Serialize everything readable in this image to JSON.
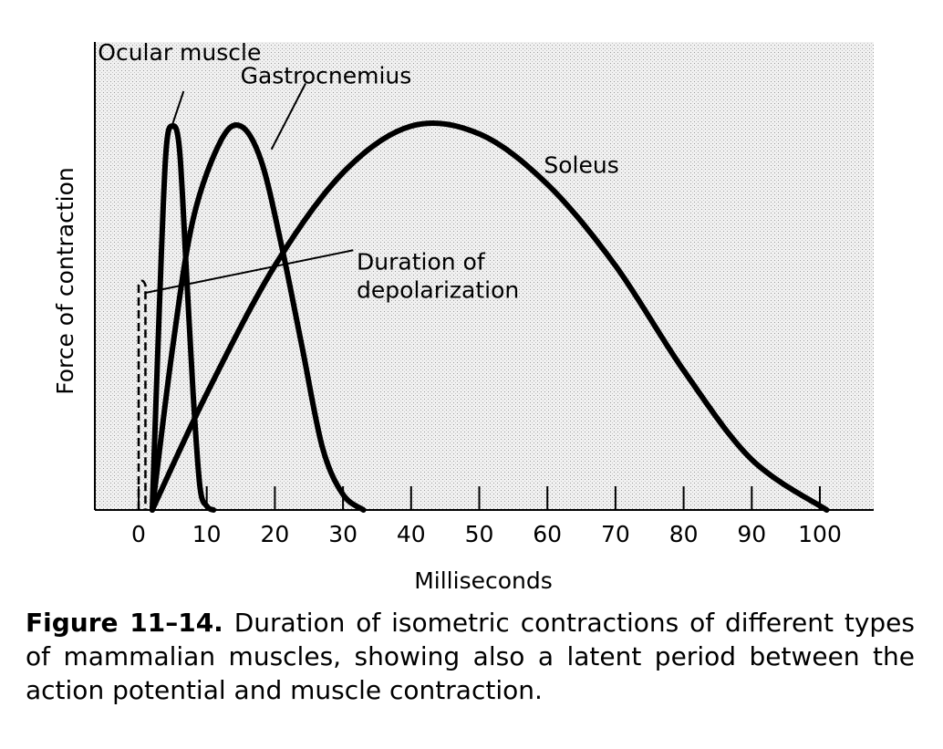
{
  "chart_data": {
    "type": "line",
    "title": "",
    "xlabel": "Milliseconds",
    "ylabel": "Force of contraction",
    "xlim": [
      0,
      110
    ],
    "ylim": [
      0,
      1
    ],
    "xticks": [
      0,
      10,
      20,
      30,
      40,
      50,
      60,
      70,
      80,
      90,
      100
    ],
    "grid": false,
    "legend": "none (curves labeled directly)",
    "series": [
      {
        "name": "Ocular muscle",
        "x": [
          2,
          3,
          4,
          5,
          6,
          7,
          8,
          9,
          10,
          11
        ],
        "y": [
          0,
          0.5,
          0.92,
          0.99,
          0.93,
          0.62,
          0.3,
          0.06,
          0.01,
          0
        ]
      },
      {
        "name": "Gastrocnemius",
        "x": [
          2,
          5,
          8,
          12,
          15,
          18,
          21,
          24,
          27,
          30,
          33
        ],
        "y": [
          0,
          0.42,
          0.75,
          0.95,
          0.99,
          0.9,
          0.68,
          0.42,
          0.16,
          0.04,
          0
        ]
      },
      {
        "name": "Soleus",
        "x": [
          2,
          10,
          20,
          30,
          40,
          50,
          60,
          70,
          80,
          90,
          101
        ],
        "y": [
          0,
          0.3,
          0.63,
          0.87,
          0.99,
          0.97,
          0.84,
          0.63,
          0.36,
          0.13,
          0
        ]
      },
      {
        "name": "Duration of depolarization",
        "x": [
          0,
          0,
          0.5,
          1,
          1
        ],
        "y": [
          0,
          0.58,
          0.59,
          0.58,
          0
        ]
      }
    ],
    "annotations": [
      {
        "text": "Ocular muscle",
        "x": 6,
        "y": 1.16
      },
      {
        "text": "Gastrocnemius",
        "x": 27.5,
        "y": 1.1
      },
      {
        "text": "Soleus",
        "x": 65,
        "y": 0.87
      },
      {
        "text": [
          "Duration of",
          "depolarization"
        ],
        "x": 32,
        "y": 0.62
      }
    ]
  },
  "caption": {
    "figure_label": "Figure 11–14.",
    "text": "Duration of isometric contractions of different types of mammalian muscles, showing also a latent period between the action potential and muscle contraction."
  },
  "colors": {
    "line": "#000000",
    "plot_background": "#ececec"
  }
}
